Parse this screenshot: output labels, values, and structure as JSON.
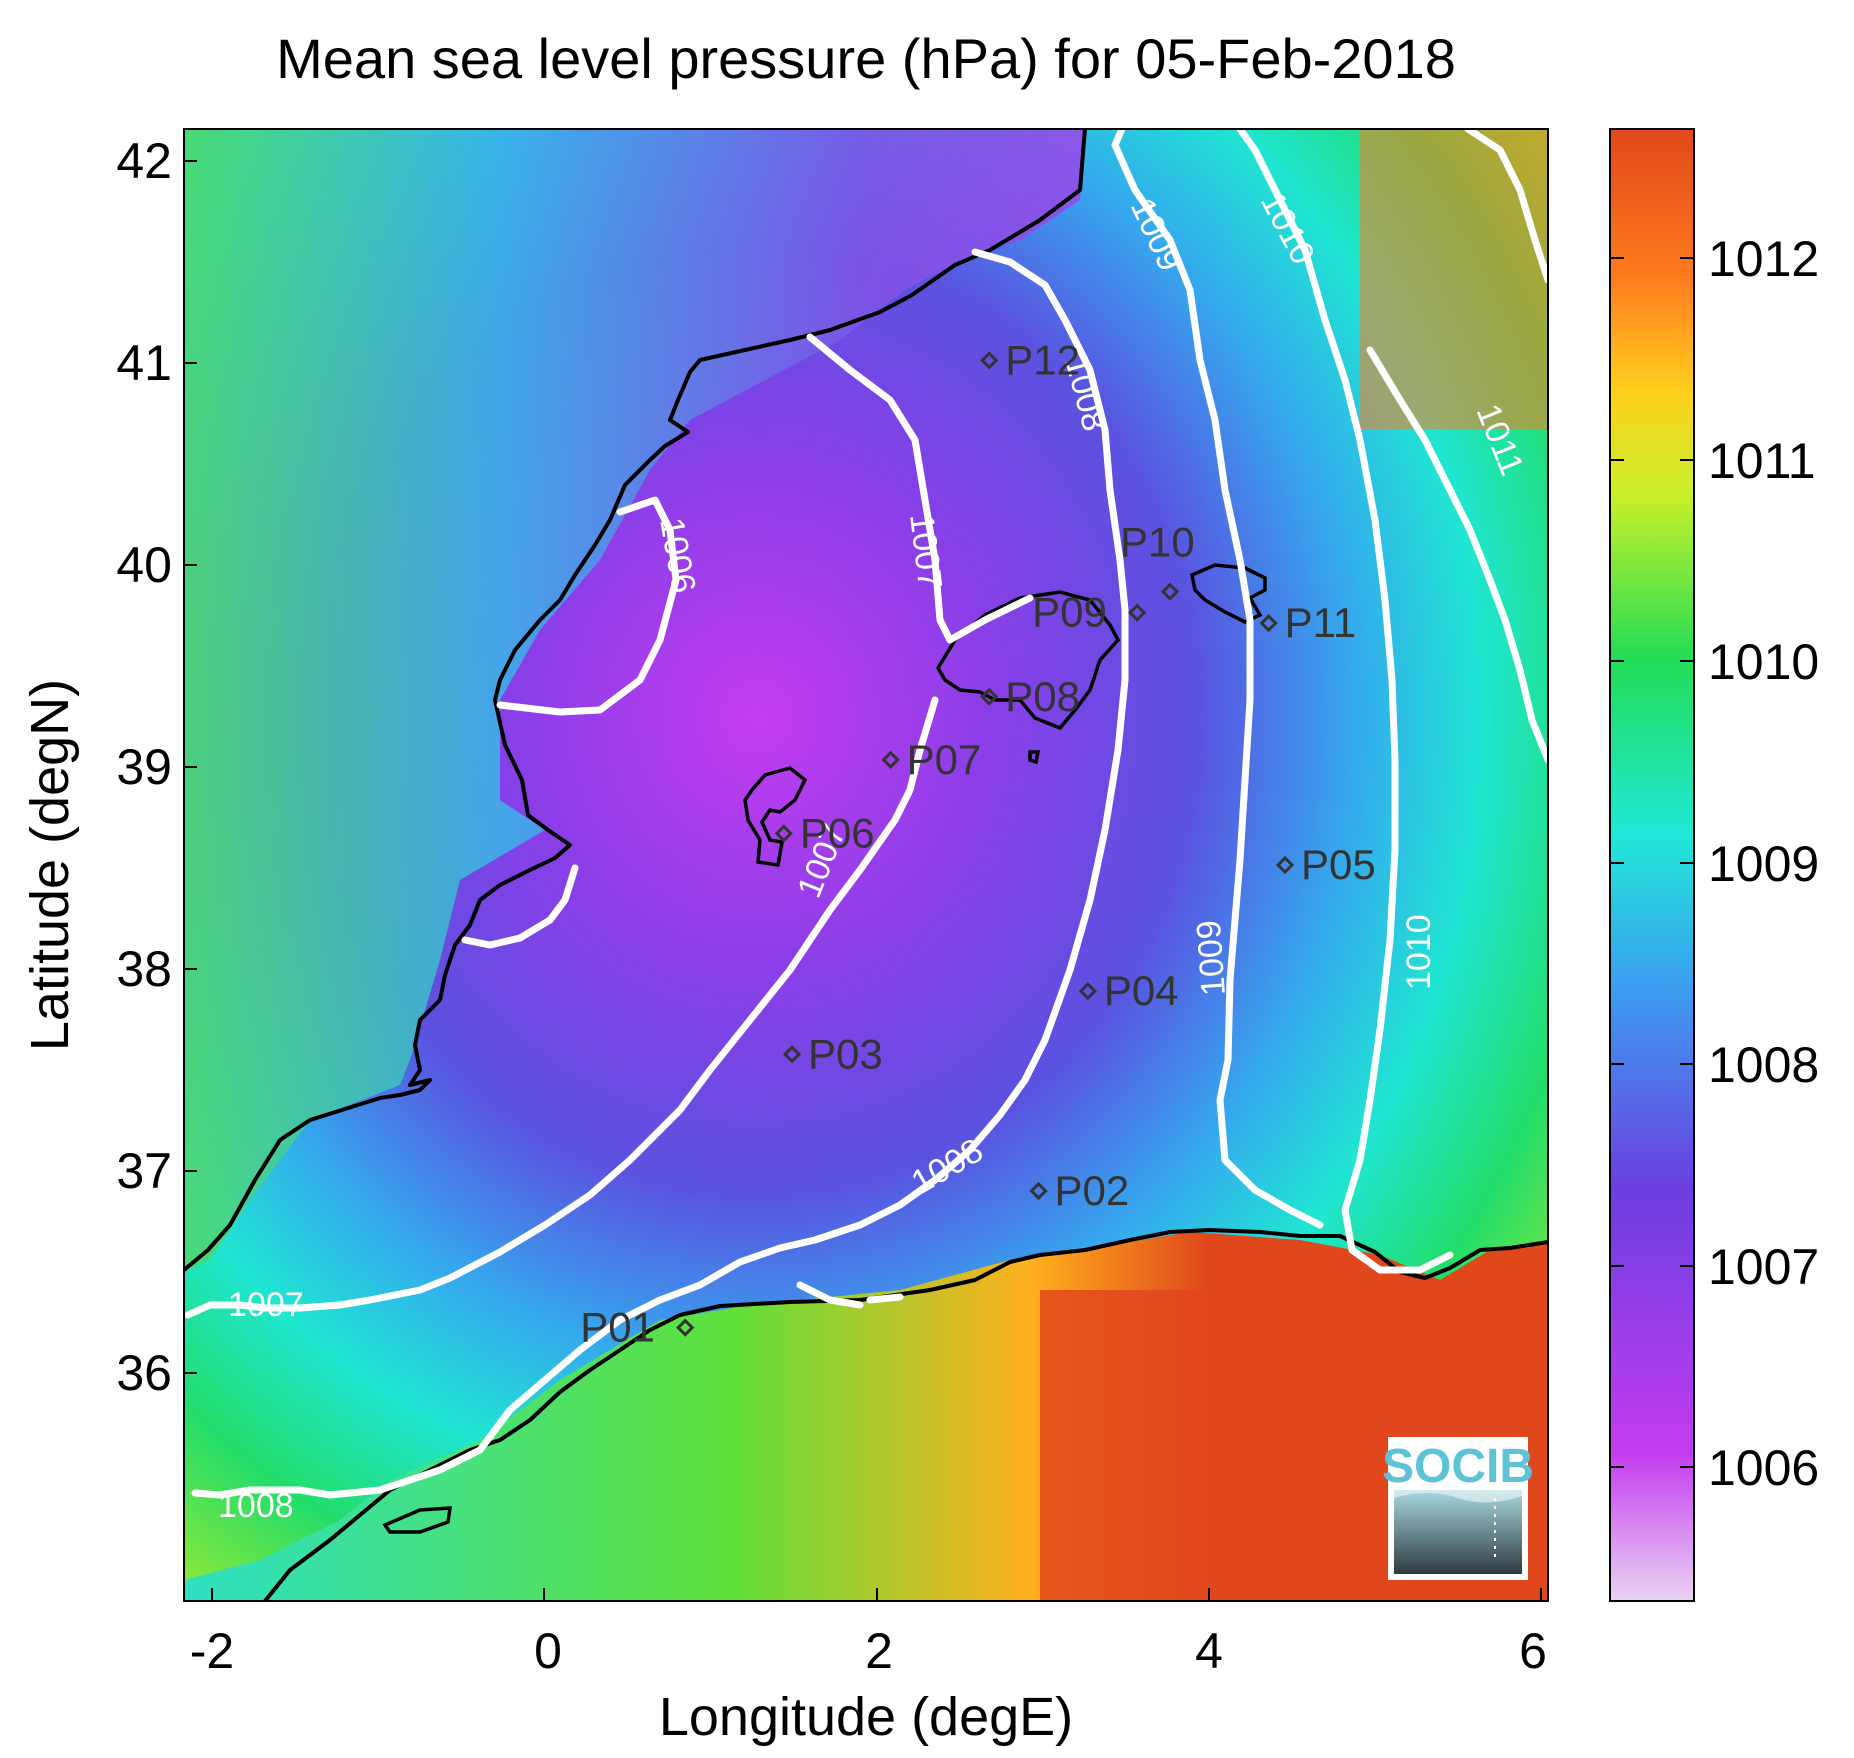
{
  "title": "Mean sea level pressure (hPa) for 05-Feb-2018",
  "xlabel": "Longitude (degE)",
  "ylabel": "Latitude (degN)",
  "xticks": [
    "-2",
    "0",
    "2",
    "4",
    "6"
  ],
  "yticks": [
    "42",
    "41",
    "40",
    "39",
    "38",
    "37",
    "36"
  ],
  "colorbar_ticks": [
    "1012",
    "1011",
    "1010",
    "1009",
    "1008",
    "1007",
    "1006"
  ],
  "contour_labels": {
    "c1006": "1006",
    "c1007a": "1007",
    "c1007b": "1007",
    "c1007c": "1007",
    "c1008a": "1008",
    "c1008b": "1008",
    "c1008c": "1008",
    "c1009a": "1009",
    "c1009b": "1009",
    "c1010a": "1010",
    "c1010b": "1010",
    "c1011": "1011"
  },
  "stations": [
    {
      "id": "P01",
      "lon": 0.85,
      "lat": 36.5
    },
    {
      "id": "P02",
      "lon": 3.0,
      "lat": 37.15
    },
    {
      "id": "P03",
      "lon": 1.5,
      "lat": 37.8
    },
    {
      "id": "P04",
      "lon": 3.3,
      "lat": 38.1
    },
    {
      "id": "P05",
      "lon": 4.5,
      "lat": 38.7
    },
    {
      "id": "P06",
      "lon": 1.45,
      "lat": 38.85
    },
    {
      "id": "P07",
      "lon": 2.1,
      "lat": 39.2
    },
    {
      "id": "P08",
      "lon": 2.7,
      "lat": 39.5
    },
    {
      "id": "P09",
      "lon": 3.6,
      "lat": 39.9
    },
    {
      "id": "P10",
      "lon": 3.8,
      "lat": 40.0
    },
    {
      "id": "P11",
      "lon": 4.4,
      "lat": 39.85
    },
    {
      "id": "P12",
      "lon": 2.7,
      "lat": 41.1
    }
  ],
  "logo": {
    "text": "SOCIB"
  },
  "colors": {
    "contour": "#ffffff",
    "coast": "#000000",
    "colormap": [
      "#ead3f2",
      "#c43cf0",
      "#6b3ee0",
      "#3aa0f0",
      "#20e8d8",
      "#22dd55",
      "#c7f02a",
      "#ffd21e",
      "#e0481c"
    ]
  },
  "chart_data": {
    "type": "heatmap",
    "title": "Mean sea level pressure (hPa) for 05-Feb-2018",
    "xlabel": "Longitude (degE)",
    "ylabel": "Latitude (degN)",
    "xlim": [
      -2.2,
      6.1
    ],
    "ylim": [
      35.2,
      42.2
    ],
    "clim": [
      1005.3,
      1012.7
    ],
    "colorbar_ticks": [
      1006,
      1007,
      1008,
      1009,
      1010,
      1011,
      1012
    ],
    "contour_levels": [
      1006,
      1007,
      1008,
      1009,
      1010,
      1011
    ]
  }
}
